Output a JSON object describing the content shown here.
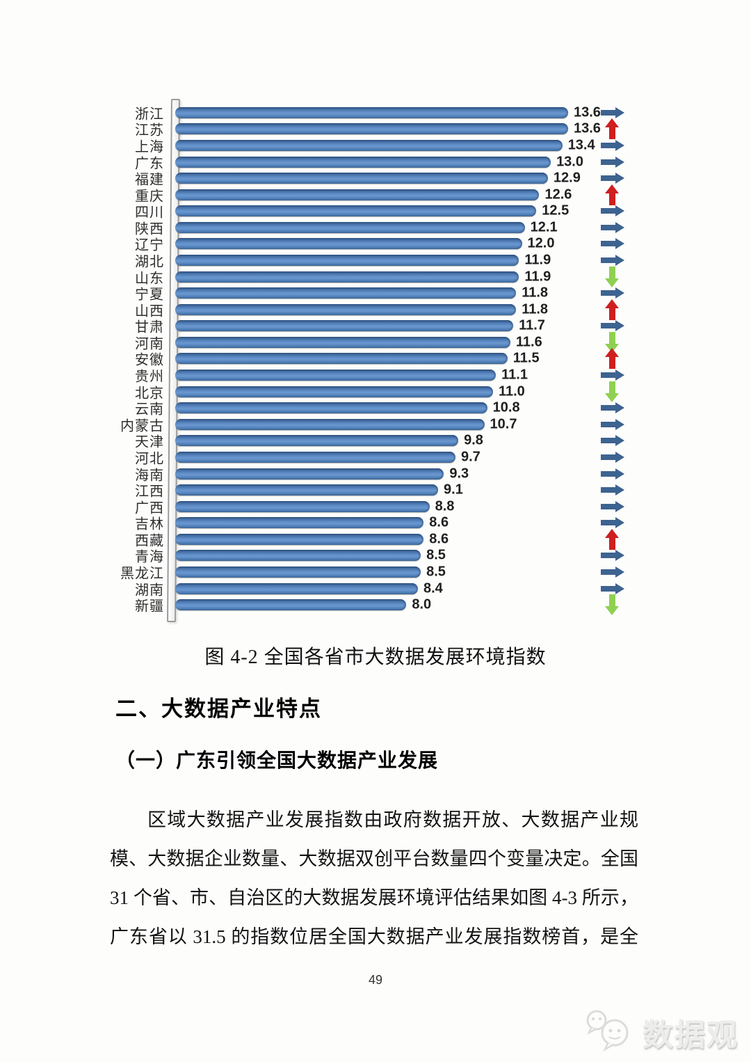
{
  "page": {
    "page_number": "49",
    "watermark": "数据观"
  },
  "figure": {
    "caption": "图 4-2 全国各省市大数据发展环境指数"
  },
  "sections": {
    "heading": "二、大数据产业特点",
    "subheading": "（一）广东引领全国大数据产业发展",
    "paragraph_lines": [
      "区域大数据产业发展指数由政府数据开放、大数据产业规",
      "模、大数据企业数量、大数据双创平台数量四个变量决定。全国",
      "31 个省、市、自治区的大数据发展环境评估结果如图 4-3 所示，",
      "广东省以 31.5 的指数位居全国大数据产业发展指数榜首，是全"
    ]
  },
  "chart_data": {
    "type": "bar",
    "orientation": "horizontal",
    "title": "图 4-2 全国各省市大数据发展环境指数",
    "xlabel": "",
    "ylabel": "",
    "xlim": [
      0,
      14
    ],
    "grid": false,
    "legend": "none",
    "categories": [
      "浙江",
      "江苏",
      "上海",
      "广东",
      "福建",
      "重庆",
      "四川",
      "陕西",
      "辽宁",
      "湖北",
      "山东",
      "宁夏",
      "山西",
      "甘肃",
      "河南",
      "安徽",
      "贵州",
      "北京",
      "云南",
      "内蒙古",
      "天津",
      "河北",
      "海南",
      "江西",
      "广西",
      "吉林",
      "西藏",
      "青海",
      "黑龙江",
      "湖南",
      "新疆"
    ],
    "values": [
      13.6,
      13.6,
      13.4,
      13.0,
      12.9,
      12.6,
      12.5,
      12.1,
      12.0,
      11.9,
      11.9,
      11.8,
      11.8,
      11.7,
      11.6,
      11.5,
      11.1,
      11.0,
      10.8,
      10.7,
      9.8,
      9.7,
      9.3,
      9.1,
      8.8,
      8.6,
      8.6,
      8.5,
      8.5,
      8.4,
      8.0
    ],
    "trend": [
      "flat",
      "up",
      "flat",
      "flat",
      "flat",
      "up",
      "flat",
      "flat",
      "flat",
      "flat",
      "down",
      "flat",
      "up",
      "flat",
      "down",
      "up",
      "flat",
      "down",
      "flat",
      "flat",
      "flat",
      "flat",
      "flat",
      "flat",
      "flat",
      "flat",
      "up",
      "flat",
      "flat",
      "flat",
      "down"
    ],
    "colors": {
      "bar": "#4f7fba",
      "arrow_flat": "#3d6390",
      "arrow_up": "#cf1f1f",
      "arrow_down": "#8fd051"
    }
  }
}
